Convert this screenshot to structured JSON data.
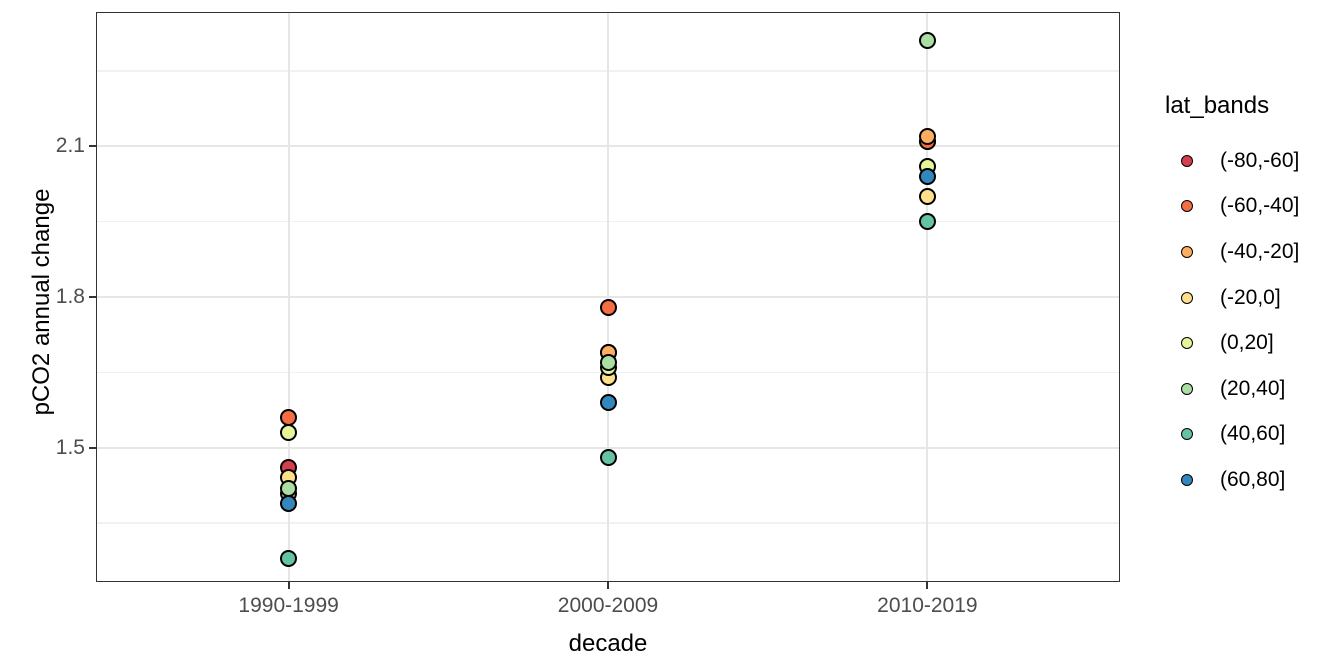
{
  "chart_data": {
    "type": "scatter",
    "title": "",
    "xlabel": "decade",
    "ylabel": "pCO2 annual change",
    "categories": [
      "1990-1999",
      "2000-2009",
      "2010-2019"
    ],
    "y_tick_labels": [
      "1.5",
      "1.8",
      "2.1"
    ],
    "y_tick_values": [
      1.5,
      1.8,
      2.1
    ],
    "y_minor_values": [
      1.35,
      1.65,
      1.95,
      2.25
    ],
    "ylim": [
      1.235,
      2.365
    ],
    "grid": true,
    "legend": {
      "title": "lat_bands",
      "position": "right"
    },
    "series": [
      {
        "name": "(-80,-60]",
        "color": "#D53E4F",
        "values": [
          1.46,
          1.69,
          2.11
        ]
      },
      {
        "name": "(-60,-40]",
        "color": "#F46D43",
        "values": [
          1.56,
          1.78,
          2.11
        ]
      },
      {
        "name": "(-40,-20]",
        "color": "#FDAE61",
        "values": [
          1.41,
          1.69,
          2.12
        ]
      },
      {
        "name": "(-20,0]",
        "color": "#FEE08B",
        "values": [
          1.44,
          1.64,
          2.0
        ]
      },
      {
        "name": "(0,20]",
        "color": "#E6F598",
        "values": [
          1.53,
          1.66,
          2.06
        ]
      },
      {
        "name": "(20,40]",
        "color": "#ABDDA4",
        "values": [
          1.42,
          1.67,
          2.31
        ]
      },
      {
        "name": "(40,60]",
        "color": "#66C2A5",
        "values": [
          1.28,
          1.48,
          1.95
        ]
      },
      {
        "name": "(60,80]",
        "color": "#3288BD",
        "values": [
          1.39,
          1.59,
          2.04
        ]
      }
    ],
    "style": {
      "point_outline": "#000000",
      "grid_major": "#E6E6E6",
      "grid_minor": "#F1F1F1",
      "panel_border": "#333333",
      "tick_label_color": "#4D4D4D",
      "axis_title_color": "#000000",
      "background": "#FFFFFF"
    }
  }
}
